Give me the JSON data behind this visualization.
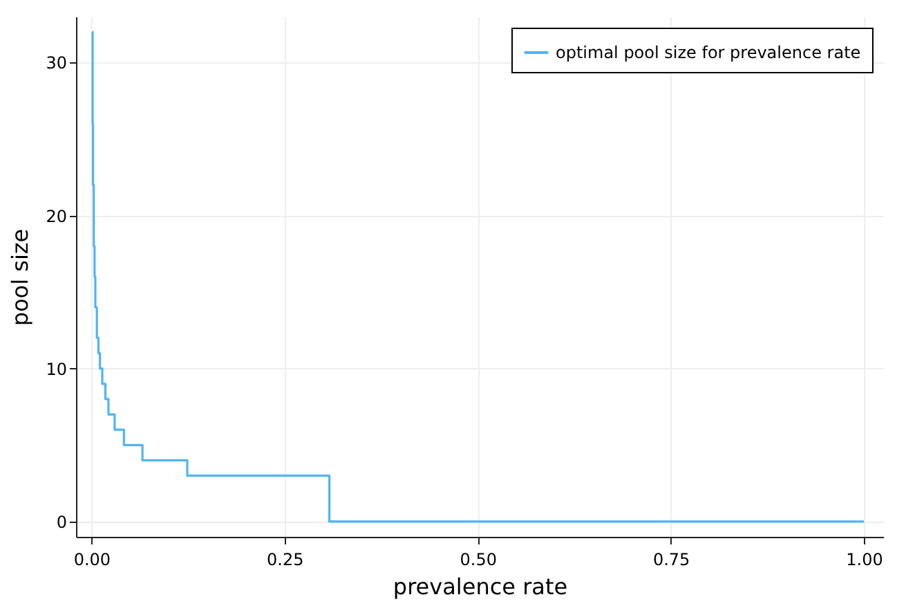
{
  "chart_data": {
    "type": "step",
    "xlabel": "prevalence rate",
    "ylabel": "pool size",
    "x": [
      0.001,
      0.0015,
      0.002,
      0.003,
      0.004,
      0.005,
      0.007,
      0.009,
      0.011,
      0.014,
      0.018,
      0.022,
      0.03,
      0.042,
      0.066,
      0.124,
      0.308,
      1.0
    ],
    "series": [
      {
        "name": "optimal pool size for prevalence rate",
        "color": "#4fb4f7",
        "values": [
          32,
          26,
          22,
          18,
          16,
          14,
          12,
          11,
          10,
          9,
          8,
          7,
          6,
          5,
          4,
          3,
          0,
          0
        ]
      }
    ],
    "xlim": [
      -0.02,
      1.025
    ],
    "xticks": [
      {
        "value": 0,
        "label": "0.00"
      },
      {
        "value": 0.25,
        "label": "0.25"
      },
      {
        "value": 0.5,
        "label": "0.50"
      },
      {
        "value": 0.75,
        "label": "0.75"
      },
      {
        "value": 1,
        "label": "1.00"
      }
    ],
    "ylim": [
      -1,
      33
    ],
    "yticks": [
      0,
      10,
      20,
      30
    ],
    "grid": true,
    "legend": "top right"
  }
}
